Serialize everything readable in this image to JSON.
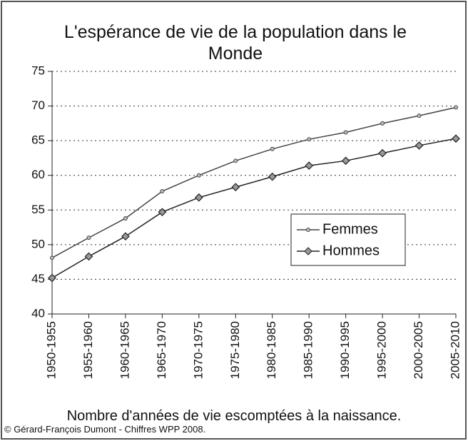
{
  "chart_data": {
    "type": "line",
    "title": "L'espérance de vie de la population dans le Monde",
    "x_label": "Nombre d'années de vie escomptées à la naissance.",
    "credit": "© Gérard-François Dumont - Chiffres WPP 2008.",
    "categories": [
      "1950-1955",
      "1955-1960",
      "1960-1965",
      "1965-1970",
      "1970-1975",
      "1975-1980",
      "1980-1985",
      "1985-1990",
      "1990-1995",
      "1995-2000",
      "2000-2005",
      "2005-2010"
    ],
    "series": [
      {
        "name": "Femmes",
        "color": "#444444",
        "marker": "circle",
        "values": [
          48.1,
          51.0,
          53.8,
          57.7,
          60.0,
          62.1,
          63.8,
          65.2,
          66.2,
          67.5,
          68.6,
          69.8
        ]
      },
      {
        "name": "Hommes",
        "color": "#222222",
        "marker": "diamond",
        "values": [
          45.2,
          48.3,
          51.2,
          54.7,
          56.8,
          58.3,
          59.8,
          61.4,
          62.1,
          63.2,
          64.3,
          65.3
        ]
      }
    ],
    "ylim": [
      40,
      75
    ],
    "yticks": [
      40,
      45,
      50,
      55,
      60,
      65,
      70,
      75
    ],
    "grid": true,
    "legend": "right"
  }
}
